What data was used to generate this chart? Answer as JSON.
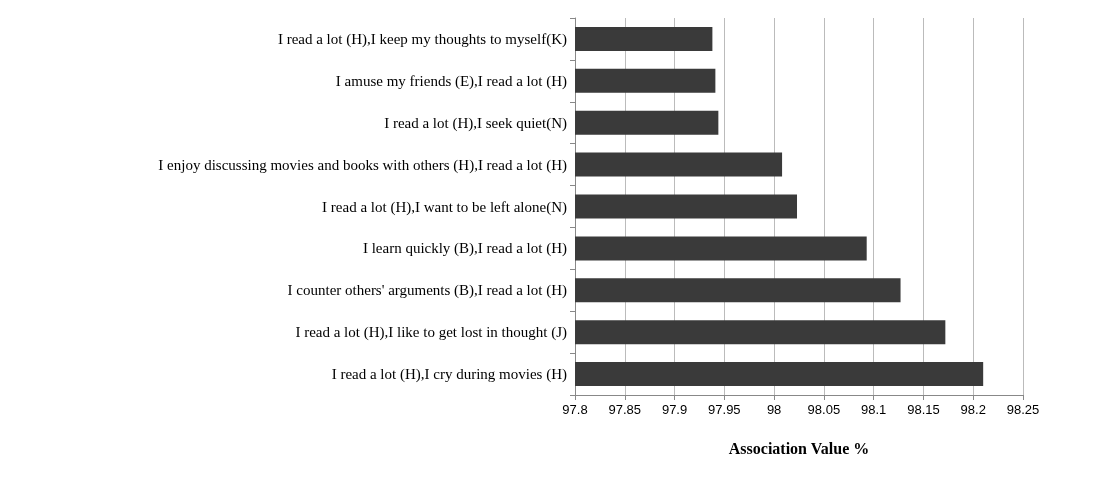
{
  "chart_data": {
    "type": "bar",
    "orientation": "horizontal",
    "xlabel": "Association Value %",
    "categories": [
      "I read a lot (H),I keep my thoughts to myself(K)",
      "I amuse my friends (E),I read a lot (H)",
      "I read a lot (H),I seek quiet(N)",
      "I enjoy discussing movies and books with others (H),I read a lot (H)",
      "I read a lot (H),I want to be left alone(N)",
      "I learn quickly (B),I read a lot (H)",
      "I counter others' arguments (B),I read a lot (H)",
      "I read a lot (H),I like to get lost in thought (J)",
      "I read a lot (H),I cry during movies (H)"
    ],
    "values": [
      97.938,
      97.941,
      97.944,
      98.008,
      98.023,
      98.093,
      98.127,
      98.172,
      98.21
    ],
    "color": "#3a3a3a",
    "xlim": [
      97.8,
      98.25
    ],
    "xticks": [
      97.8,
      97.85,
      97.9,
      97.95,
      98,
      98.05,
      98.1,
      98.15,
      98.2,
      98.25
    ],
    "grid": "x"
  }
}
